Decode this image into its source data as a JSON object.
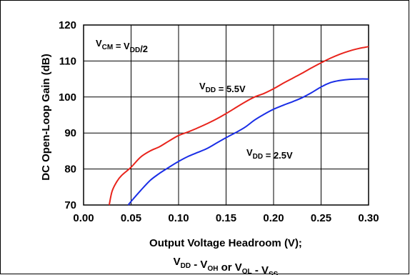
{
  "chart_data": {
    "type": "line",
    "title": "",
    "ylabel": "DC Open-Loop Gain (dB)",
    "xlabel_line1": "Output Voltage Headroom (V);",
    "xlabel_line2": {
      "parts": [
        {
          "text": "V",
          "sub": "DD"
        },
        {
          "text": " - V",
          "sub": "OH"
        },
        {
          "text": " or V",
          "sub": "OL"
        },
        {
          "text": " - V",
          "sub": "SS"
        }
      ]
    },
    "xlim": [
      0.0,
      0.3
    ],
    "ylim": [
      70,
      120
    ],
    "xticks": [
      "0.00",
      "0.05",
      "0.10",
      "0.15",
      "0.20",
      "0.25",
      "0.30"
    ],
    "xtick_values": [
      0.0,
      0.05,
      0.1,
      0.15,
      0.2,
      0.25,
      0.3
    ],
    "yticks": [
      "70",
      "80",
      "90",
      "100",
      "110",
      "120"
    ],
    "ytick_values": [
      70,
      80,
      90,
      100,
      110,
      120
    ],
    "grid": true,
    "annotations": {
      "condition": {
        "parts": [
          {
            "text": "V",
            "sub": "CM"
          },
          {
            "text": " = V",
            "sub": "DD"
          },
          {
            "text": "/2",
            "sub": ""
          }
        ]
      },
      "series_55": {
        "parts": [
          {
            "text": "V",
            "sub": "DD"
          },
          {
            "text": " = 5.5V",
            "sub": ""
          }
        ]
      },
      "series_25": {
        "parts": [
          {
            "text": "V",
            "sub": "DD"
          },
          {
            "text": " = 2.5V",
            "sub": ""
          }
        ]
      }
    },
    "series": [
      {
        "name": "VDD = 5.5V",
        "color": "#e8241c",
        "x": [
          0.027,
          0.03,
          0.035,
          0.04,
          0.05,
          0.06,
          0.07,
          0.08,
          0.09,
          0.1,
          0.11,
          0.12,
          0.13,
          0.14,
          0.15,
          0.16,
          0.17,
          0.18,
          0.19,
          0.2,
          0.21,
          0.22,
          0.23,
          0.24,
          0.25,
          0.26,
          0.27,
          0.28,
          0.29,
          0.3
        ],
        "y": [
          70.0,
          73.8,
          76.5,
          78.2,
          80.5,
          83.3,
          85.0,
          86.2,
          87.8,
          89.3,
          90.3,
          91.4,
          92.6,
          93.9,
          95.4,
          97.0,
          98.6,
          100.0,
          101.0,
          102.3,
          103.8,
          105.2,
          106.6,
          108.1,
          109.5,
          110.8,
          111.9,
          112.8,
          113.5,
          114.0
        ]
      },
      {
        "name": "VDD = 2.5V",
        "color": "#1a2ee6",
        "x": [
          0.047,
          0.05,
          0.06,
          0.07,
          0.08,
          0.09,
          0.1,
          0.11,
          0.12,
          0.13,
          0.14,
          0.15,
          0.16,
          0.17,
          0.18,
          0.19,
          0.2,
          0.21,
          0.22,
          0.23,
          0.24,
          0.25,
          0.26,
          0.27,
          0.28,
          0.29,
          0.3
        ],
        "y": [
          70.0,
          71.0,
          74.0,
          76.8,
          78.8,
          80.5,
          82.1,
          83.5,
          84.6,
          85.7,
          87.2,
          88.7,
          90.1,
          91.6,
          93.6,
          95.2,
          96.6,
          97.7,
          98.7,
          99.8,
          101.2,
          102.8,
          104.0,
          104.6,
          104.9,
          105.0,
          105.0
        ]
      }
    ]
  }
}
